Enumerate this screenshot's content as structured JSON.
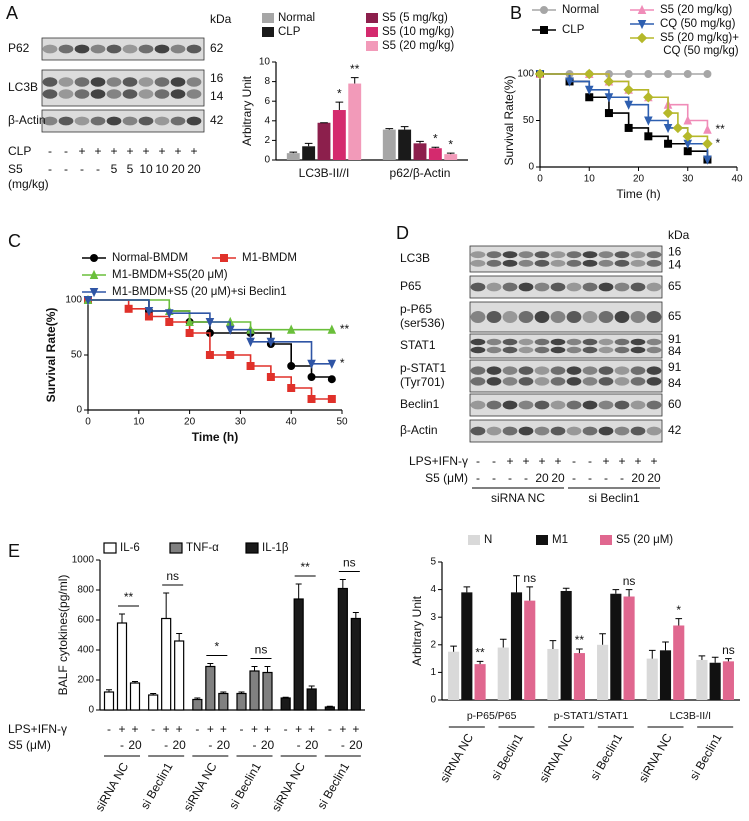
{
  "panel_labels": [
    "A",
    "B",
    "C",
    "D",
    "E"
  ],
  "blot_a": {
    "kda_title": "kDa",
    "rows": [
      {
        "label": "P62",
        "kda": [
          62
        ]
      },
      {
        "label": "LC3B",
        "kda": [
          16,
          14
        ]
      },
      {
        "label": "β-Actin",
        "kda": [
          42
        ]
      }
    ],
    "conditions": [
      {
        "label": "CLP",
        "values": [
          "-",
          "-",
          "+",
          "+",
          "+",
          "+",
          "+",
          "+",
          "+",
          "+"
        ]
      },
      {
        "label": "S5",
        "unit": "(mg/kg)",
        "values": [
          "-",
          "-",
          "-",
          "-",
          "5",
          "5",
          "10",
          "10",
          "20",
          "20"
        ]
      }
    ]
  },
  "blot_d": {
    "kda_title": "kDa",
    "rows": [
      {
        "label": "LC3B",
        "kda": [
          16,
          14
        ]
      },
      {
        "label": "P65",
        "kda": [
          65
        ]
      },
      {
        "label": "p-P65",
        "sub": "(ser536)",
        "kda": [
          65
        ]
      },
      {
        "label": "STAT1",
        "kda": [
          91,
          84
        ]
      },
      {
        "label": "p-STAT1",
        "sub": "(Tyr701)",
        "kda": [
          91,
          84
        ]
      },
      {
        "label": "Beclin1",
        "kda": [
          60
        ]
      },
      {
        "label": "β-Actin",
        "kda": [
          42
        ]
      }
    ],
    "conditions": [
      {
        "label": "LPS+IFN-γ",
        "values": [
          "-",
          "-",
          "+",
          "+",
          "+",
          "+",
          "-",
          "-",
          "+",
          "+",
          "+",
          "+"
        ]
      },
      {
        "label": "S5 (μM)",
        "values": [
          "-",
          "-",
          "-",
          "-",
          "20",
          "20",
          "-",
          "-",
          "-",
          "-",
          "20",
          "20"
        ]
      }
    ],
    "groups": [
      "siRNA NC",
      "si Beclin1"
    ]
  },
  "chart_data": [
    {
      "type": "bar",
      "ylabel": "Arbitrary Unit",
      "categories": [
        "LC3B-II//I",
        "p62/β-Actin"
      ],
      "ylim": [
        0,
        10
      ],
      "yticks": [
        0,
        2,
        4,
        6,
        8,
        10
      ],
      "grid": false,
      "series": [
        {
          "name": "Normal",
          "color": "#a6a6a6",
          "values": [
            0.7,
            3.1
          ],
          "errors": [
            0.1,
            0.1
          ]
        },
        {
          "name": "CLP",
          "color": "#1a1a1a",
          "values": [
            1.4,
            3.1
          ],
          "errors": [
            0.3,
            0.3
          ]
        },
        {
          "name": "S5 (5 mg/kg)",
          "color": "#8c1f4c",
          "values": [
            3.8,
            1.7
          ],
          "errors": [
            0,
            0.2
          ]
        },
        {
          "name": "S5 (10 mg/kg)",
          "color": "#d42a6e",
          "values": [
            5.1,
            1.2
          ],
          "errors": [
            0.8,
            0.1
          ],
          "sig": [
            "*",
            "*"
          ]
        },
        {
          "name": "S5 (20 mg/kg)",
          "color": "#f29ab9",
          "values": [
            7.8,
            0.6
          ],
          "errors": [
            0.6,
            0.1
          ],
          "sig": [
            "**",
            "*"
          ]
        }
      ]
    },
    {
      "type": "line",
      "xlabel": "Time (h)",
      "ylabel": "Survival Rate(%)",
      "xlim": [
        0,
        40
      ],
      "xticks": [
        0,
        10,
        20,
        30,
        40
      ],
      "ylim": [
        0,
        100
      ],
      "yticks": [
        0,
        50,
        100
      ],
      "grid": false,
      "series": [
        {
          "name": "Normal",
          "color": "#a6a6a6",
          "marker": "circle",
          "x": [
            0,
            6,
            10,
            14,
            18,
            22,
            26,
            30,
            34
          ],
          "values": [
            100,
            100,
            100,
            100,
            100,
            100,
            100,
            100,
            100
          ]
        },
        {
          "name": "CLP",
          "color": "#000000",
          "marker": "square",
          "x": [
            0,
            6,
            10,
            14,
            18,
            22,
            26,
            30,
            34
          ],
          "values": [
            100,
            92,
            75,
            58,
            42,
            33,
            25,
            17,
            8
          ]
        },
        {
          "name": "S5 (20 mg/kg)",
          "color": "#f08cb8",
          "marker": "triangle",
          "x": [
            0,
            10,
            14,
            18,
            22,
            26,
            30,
            34
          ],
          "values": [
            100,
            100,
            92,
            83,
            75,
            67,
            50,
            40
          ],
          "sig": "**"
        },
        {
          "name": "CQ (50 mg/kg)",
          "color": "#2e5fb0",
          "marker": "triangle-down",
          "x": [
            0,
            6,
            10,
            14,
            18,
            22,
            26,
            30,
            34
          ],
          "values": [
            100,
            92,
            83,
            75,
            67,
            50,
            42,
            25,
            8
          ]
        },
        {
          "name": "S5 (20 mg/kg)+ CQ (50 mg/kg)",
          "color": "#b5b82a",
          "marker": "diamond",
          "x": [
            0,
            10,
            14,
            18,
            22,
            26,
            28,
            30,
            34
          ],
          "values": [
            100,
            100,
            92,
            83,
            75,
            58,
            42,
            33,
            25
          ],
          "sig": "*"
        }
      ]
    },
    {
      "type": "line",
      "xlabel": "Time (h)",
      "ylabel": "Survival Rate(%)",
      "xlim": [
        0,
        50
      ],
      "xticks": [
        0,
        10,
        20,
        30,
        40,
        50
      ],
      "ylim": [
        0,
        100
      ],
      "yticks": [
        0,
        50,
        100
      ],
      "grid": false,
      "series": [
        {
          "name": "Normal-BMDM",
          "color": "#000000",
          "marker": "circle",
          "x": [
            0,
            12,
            20,
            24,
            32,
            36,
            40,
            44,
            48
          ],
          "values": [
            100,
            90,
            80,
            70,
            70,
            60,
            40,
            30,
            28
          ]
        },
        {
          "name": "M1-BMDM",
          "color": "#e0312a",
          "marker": "square",
          "x": [
            0,
            8,
            12,
            16,
            20,
            24,
            28,
            32,
            36,
            40,
            44,
            48
          ],
          "values": [
            100,
            92,
            85,
            80,
            70,
            50,
            50,
            40,
            30,
            20,
            10,
            10
          ]
        },
        {
          "name": "M1-BMDM+S5(20 μM)",
          "color": "#6abf3b",
          "marker": "triangle",
          "x": [
            0,
            16,
            20,
            28,
            32,
            40,
            48
          ],
          "values": [
            100,
            90,
            80,
            80,
            73,
            73,
            73
          ],
          "sig": "**"
        },
        {
          "name": "M1-BMDM+S5 (20 μM)+si Beclin1",
          "color": "#2f55a5",
          "marker": "triangle-down",
          "x": [
            0,
            12,
            16,
            24,
            28,
            32,
            36,
            44,
            48
          ],
          "values": [
            100,
            90,
            88,
            80,
            73,
            62,
            62,
            42,
            42
          ],
          "sig": "*"
        }
      ]
    },
    {
      "type": "bar",
      "ylabel": "BALF cytokines(pg/ml)",
      "ylim": [
        0,
        1000
      ],
      "yticks": [
        0,
        200,
        400,
        600,
        800,
        1000
      ],
      "grid": false,
      "conditions": [
        {
          "label": "LPS+IFN-γ",
          "values": [
            "-",
            "+",
            "+"
          ]
        },
        {
          "label": "S5 (μM)",
          "values": [
            null,
            "-",
            "20"
          ]
        }
      ],
      "series": [
        {
          "name": "IL-6",
          "color": "#ffffff",
          "groups": [
            {
              "label": "siRNA NC",
              "values": [
                120,
                580,
                180
              ],
              "errors": [
                15,
                60,
                10
              ],
              "sig": "**"
            },
            {
              "label": "si Beclin1",
              "values": [
                100,
                610,
                460
              ],
              "errors": [
                10,
                170,
                50
              ],
              "sig": "ns"
            }
          ]
        },
        {
          "name": "TNF-α",
          "color": "#808080",
          "groups": [
            {
              "label": "siRNA NC",
              "values": [
                70,
                290,
                110
              ],
              "errors": [
                10,
                20,
                10
              ],
              "sig": "*"
            },
            {
              "label": "si Beclin1",
              "values": [
                110,
                260,
                250
              ],
              "errors": [
                10,
                30,
                40
              ],
              "sig": "ns"
            }
          ]
        },
        {
          "name": "IL-1β",
          "color": "#1a1a1a",
          "groups": [
            {
              "label": "siRNA NC",
              "values": [
                80,
                740,
                140
              ],
              "errors": [
                5,
                100,
                20
              ],
              "sig": "**"
            },
            {
              "label": "si Beclin1",
              "values": [
                20,
                810,
                610
              ],
              "errors": [
                5,
                60,
                40
              ],
              "sig": "ns"
            }
          ]
        }
      ]
    },
    {
      "type": "bar",
      "ylabel": "Arbitrary Unit",
      "categories": [
        "siRNA NC",
        "si Beclin1",
        "siRNA NC",
        "si Beclin1",
        "siRNA NC",
        "si Beclin1"
      ],
      "metrics": [
        "p-P65/P65",
        "p-STAT1/STAT1",
        "LC3B-II/I"
      ],
      "ylim": [
        0,
        5
      ],
      "yticks": [
        0,
        1,
        2,
        3,
        4,
        5
      ],
      "grid": false,
      "series": [
        {
          "name": "N",
          "color": "#d9d9d9",
          "values": [
            1.75,
            1.9,
            1.85,
            2.0,
            1.5,
            1.45
          ],
          "errors": [
            0.2,
            0.3,
            0.3,
            0.4,
            0.3,
            0.15
          ]
        },
        {
          "name": "M1",
          "color": "#111111",
          "values": [
            3.9,
            3.9,
            3.95,
            3.85,
            1.8,
            1.35
          ],
          "errors": [
            0.2,
            0.6,
            0.1,
            0.15,
            0.3,
            0.2
          ]
        },
        {
          "name": "S5 (20 μM)",
          "color": "#e0678f",
          "values": [
            1.3,
            3.6,
            1.7,
            3.75,
            2.7,
            1.4
          ],
          "errors": [
            0.1,
            0.5,
            0.15,
            0.25,
            0.25,
            0.1
          ],
          "sig": [
            "**",
            "ns",
            "**",
            "ns",
            "*",
            "ns"
          ]
        }
      ]
    }
  ]
}
